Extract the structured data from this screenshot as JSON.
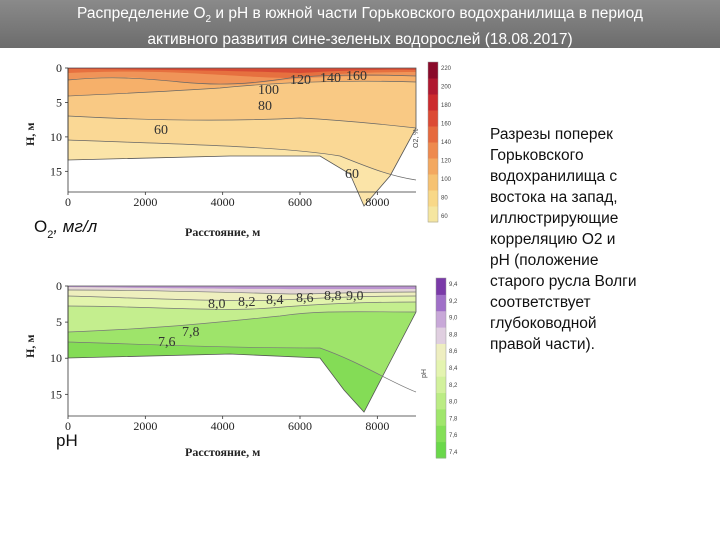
{
  "header": {
    "title_line1_a": "Распределение О",
    "title_line1_sub": "2",
    "title_line1_b": " и рН в южной части Горьковского водохранилища в период",
    "title_line2": "активного развития сине-зеленых водорослей (18.08.2017)"
  },
  "colors": {
    "o2_scale": [
      "#f5e6a0",
      "#f8d888",
      "#f6c272",
      "#f3a860",
      "#ee8a4e",
      "#e66a3e",
      "#dc4a34",
      "#cc2a2e",
      "#b01830",
      "#8a0a2a"
    ],
    "ph_scale": [
      "#6ad84a",
      "#84df58",
      "#a0e66c",
      "#bbec84",
      "#d2f19c",
      "#e4f4b0",
      "#eeeec0",
      "#e0cfe0",
      "#c8a8d8",
      "#a070c8",
      "#7a3aa8"
    ]
  },
  "chart_data": [
    {
      "type": "heatmap",
      "title": "",
      "panel_label": "О",
      "panel_label_sub": "2",
      "panel_label_unit": ", мг/л",
      "xlabel": "Расстояние, м",
      "ylabel": "Н, м",
      "x_ticks": [
        "0",
        "2000",
        "4000",
        "6000",
        "8000"
      ],
      "y_ticks": [
        "0",
        "5",
        "10",
        "15"
      ],
      "xlim": [
        0,
        9000
      ],
      "ylim": [
        18,
        0
      ],
      "colorbar_label": "О2, %",
      "colorbar_ticks": [
        "220",
        "200",
        "180",
        "160",
        "140",
        "120",
        "100",
        "80",
        "60"
      ],
      "contour_labels": [
        "60",
        "80",
        "100",
        "120",
        "140",
        "160",
        "60"
      ],
      "contour_levels": [
        60,
        80,
        100,
        120,
        140,
        160
      ]
    },
    {
      "type": "heatmap",
      "title": "",
      "panel_label": "рН",
      "xlabel": "Расстояние, м",
      "ylabel": "Н, м",
      "x_ticks": [
        "0",
        "2000",
        "4000",
        "6000",
        "8000"
      ],
      "y_ticks": [
        "0",
        "5",
        "10",
        "15"
      ],
      "xlim": [
        0,
        9000
      ],
      "ylim": [
        18,
        0
      ],
      "colorbar_label": "рН",
      "colorbar_ticks": [
        "9,4",
        "9,2",
        "9,0",
        "8,8",
        "8,6",
        "8,4",
        "8,2",
        "8,0",
        "7,8",
        "7,6",
        "7,4"
      ],
      "contour_labels": [
        "7,6",
        "7,8",
        "8,0",
        "8,2",
        "8,4",
        "8,6",
        "8,8",
        "9,0"
      ],
      "contour_levels": [
        7.6,
        7.8,
        8.0,
        8.2,
        8.4,
        8.6,
        8.8,
        9.0
      ]
    }
  ],
  "description": {
    "lines": [
      "Разрезы поперек",
      "Горьковского",
      "водохранилища с",
      "востока на запад,",
      "иллюстрирующие",
      "корреляцию О2 и",
      "рН (положение",
      "старого русла Волги",
      "соответствует",
      "глубоководной",
      "правой части)."
    ]
  }
}
